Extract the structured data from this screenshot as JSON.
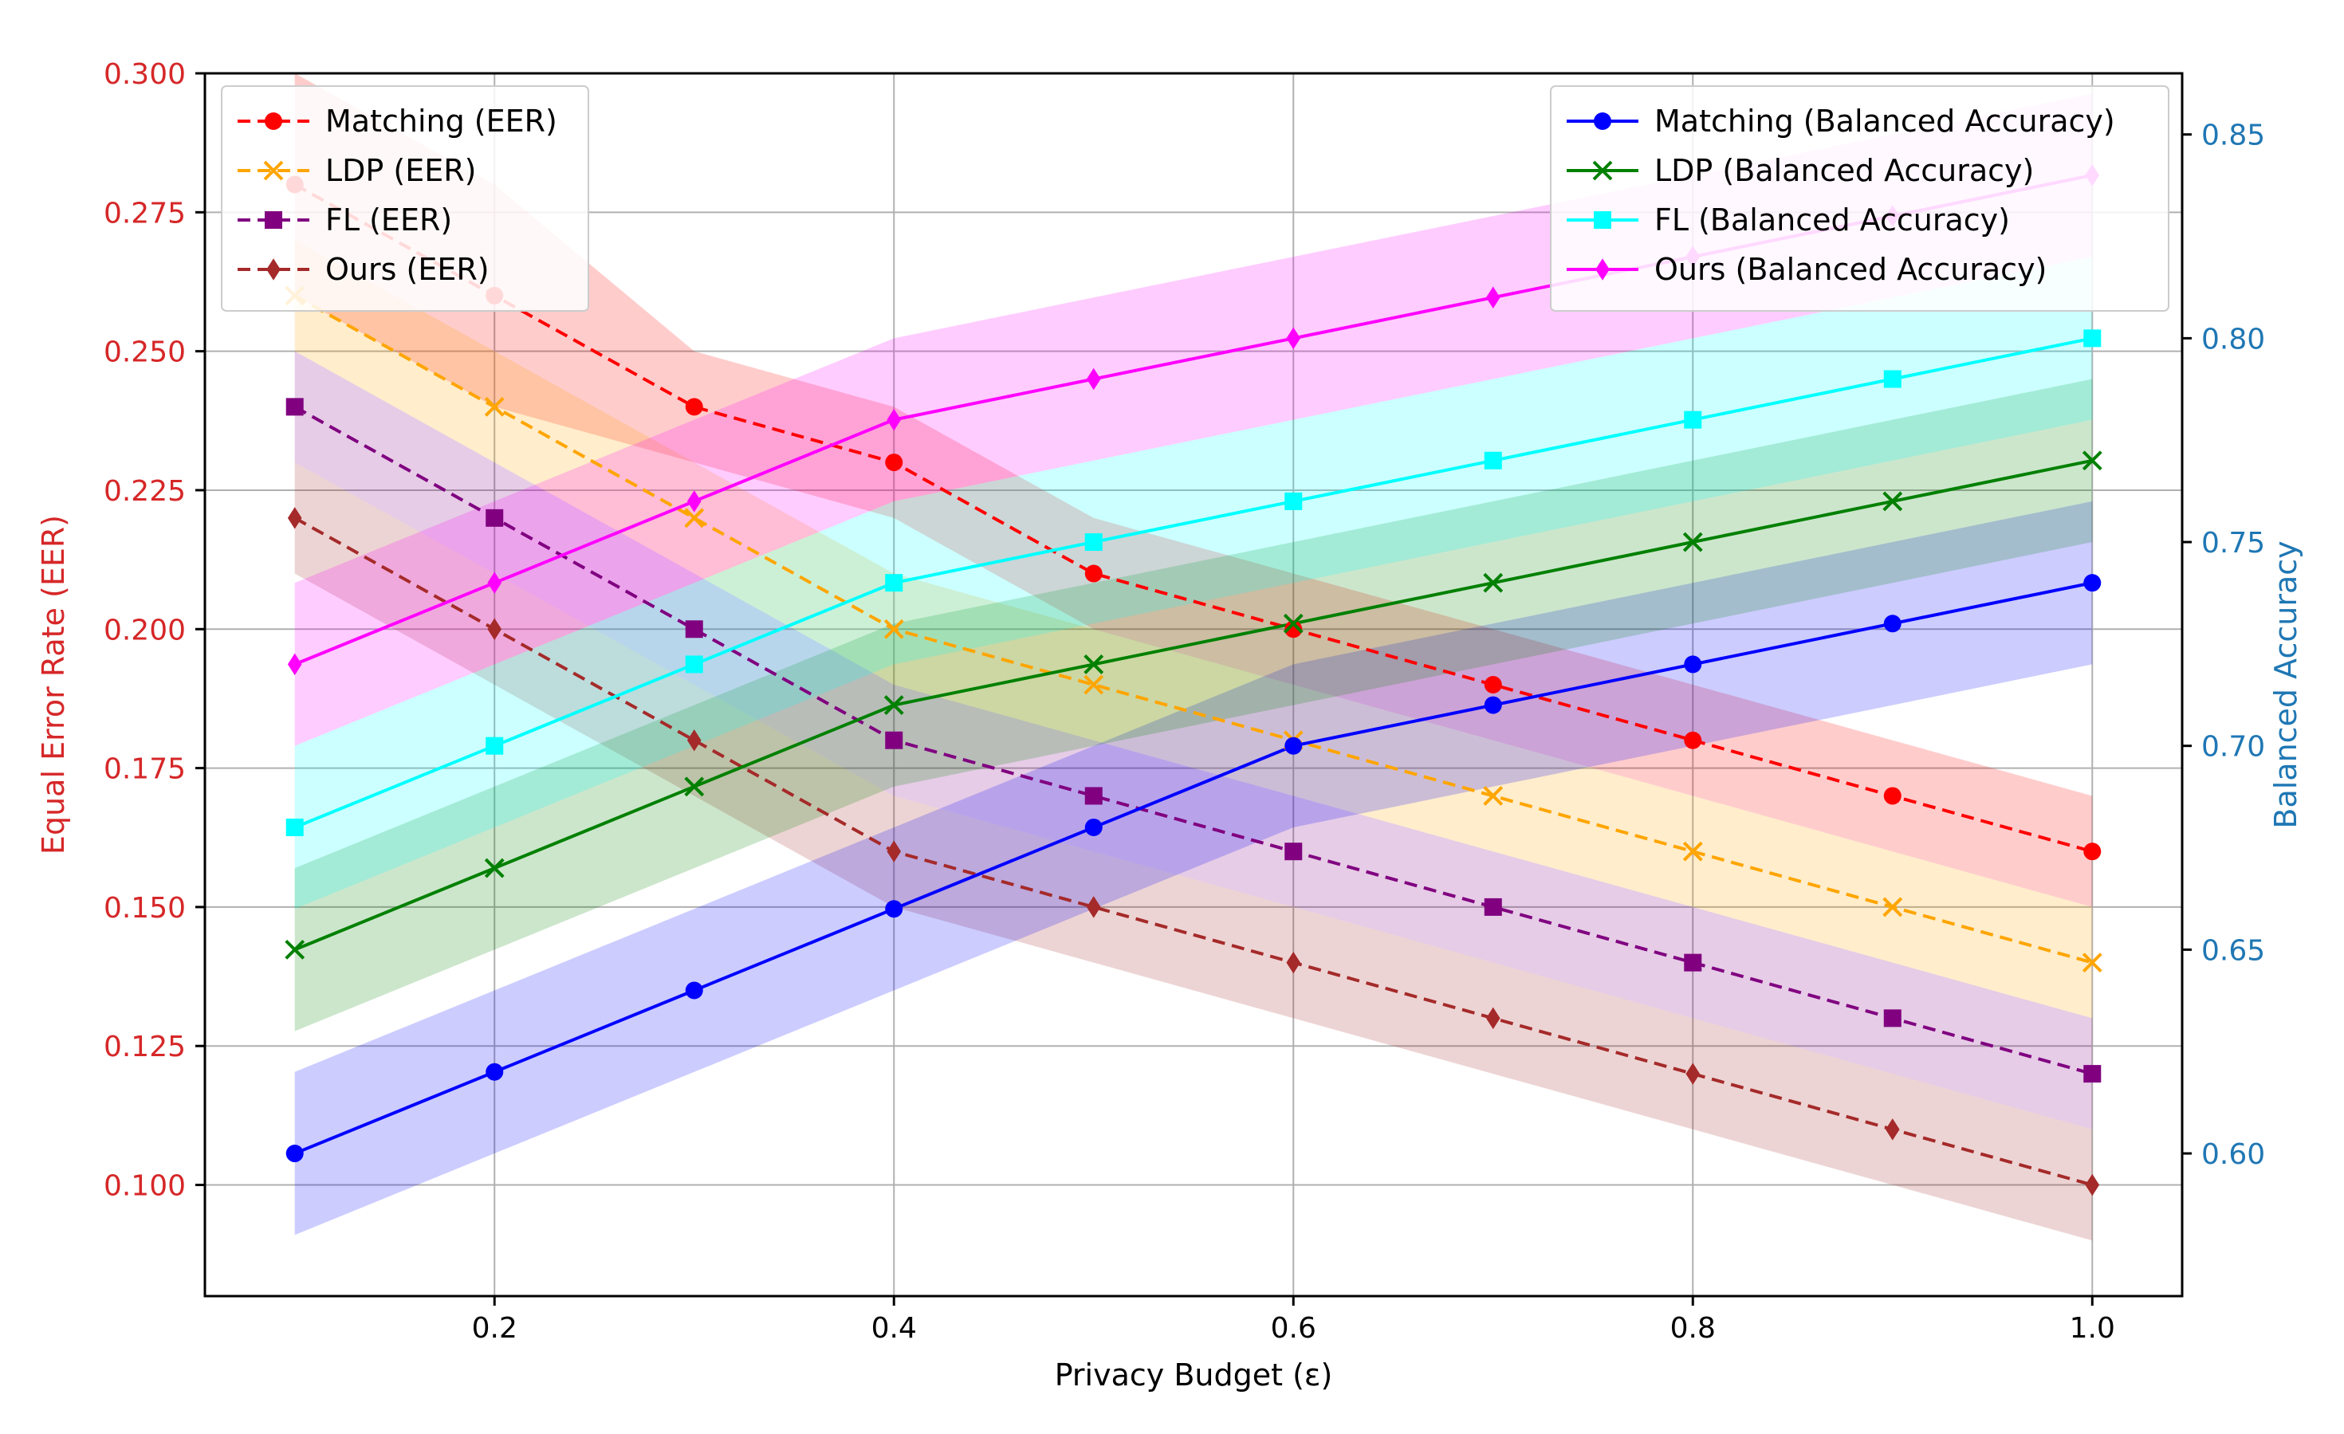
{
  "chart_data": {
    "type": "line",
    "x": [
      0.1,
      0.2,
      0.3,
      0.4,
      0.5,
      0.6,
      0.7,
      0.8,
      0.9,
      1.0
    ],
    "xlabel": "Privacy Budget (ε)",
    "ylabel_left": "Equal Error Rate (EER)",
    "ylabel_right": "Balanced Accuracy",
    "xlim": [
      0.055,
      1.045
    ],
    "ylim_left": [
      0.08,
      0.3
    ],
    "ylim_right": [
      0.565,
      0.865
    ],
    "x_ticks": [
      0.2,
      0.4,
      0.6,
      0.8,
      1.0
    ],
    "x_tick_labels": [
      "0.2",
      "0.4",
      "0.6",
      "0.8",
      "1.0"
    ],
    "y_ticks_left": [
      0.1,
      0.125,
      0.15,
      0.175,
      0.2,
      0.225,
      0.25,
      0.275,
      0.3
    ],
    "y_tick_labels_left": [
      "0.100",
      "0.125",
      "0.150",
      "0.175",
      "0.200",
      "0.225",
      "0.250",
      "0.275",
      "0.300"
    ],
    "y_ticks_right": [
      0.6,
      0.65,
      0.7,
      0.75,
      0.8,
      0.85
    ],
    "y_tick_labels_right": [
      "0.60",
      "0.65",
      "0.70",
      "0.75",
      "0.80",
      "0.85"
    ],
    "grid": true,
    "left_axis_color": "#d62728",
    "right_axis_color": "#1f77b4",
    "legend_left_position": "top-left",
    "legend_right_position": "top-right",
    "series_left": [
      {
        "name": "Matching (EER)",
        "color": "#ff0000",
        "marker": "circle",
        "linestyle": "dashed",
        "values": [
          0.28,
          0.26,
          0.24,
          0.23,
          0.21,
          0.2,
          0.19,
          0.18,
          0.17,
          0.16
        ],
        "band": [
          0.02,
          0.02,
          0.01,
          0.01,
          0.01,
          0.01,
          0.01,
          0.01,
          0.01,
          0.01
        ]
      },
      {
        "name": "LDP (EER)",
        "color": "#ffa500",
        "marker": "x",
        "linestyle": "dashed",
        "values": [
          0.26,
          0.24,
          0.22,
          0.2,
          0.19,
          0.18,
          0.17,
          0.16,
          0.15,
          0.14
        ],
        "band": [
          0.01,
          0.01,
          0.01,
          0.01,
          0.01,
          0.01,
          0.01,
          0.01,
          0.01,
          0.01
        ]
      },
      {
        "name": "FL (EER)",
        "color": "#800080",
        "marker": "square",
        "linestyle": "dashed",
        "values": [
          0.24,
          0.22,
          0.2,
          0.18,
          0.17,
          0.16,
          0.15,
          0.14,
          0.13,
          0.12
        ],
        "band": [
          0.01,
          0.01,
          0.01,
          0.01,
          0.01,
          0.01,
          0.01,
          0.01,
          0.01,
          0.01
        ]
      },
      {
        "name": "Ours (EER)",
        "color": "#a52a2a",
        "marker": "diamond",
        "linestyle": "dashed",
        "values": [
          0.22,
          0.2,
          0.18,
          0.16,
          0.15,
          0.14,
          0.13,
          0.12,
          0.11,
          0.1
        ],
        "band": [
          0.01,
          0.01,
          0.01,
          0.01,
          0.01,
          0.01,
          0.01,
          0.01,
          0.01,
          0.01
        ]
      }
    ],
    "series_right": [
      {
        "name": "Matching (Balanced Accuracy)",
        "color": "#0000ff",
        "marker": "circle",
        "linestyle": "solid",
        "values": [
          0.6,
          0.62,
          0.64,
          0.66,
          0.68,
          0.7,
          0.71,
          0.72,
          0.73,
          0.74
        ],
        "band": [
          0.02,
          0.02,
          0.02,
          0.02,
          0.02,
          0.02,
          0.02,
          0.02,
          0.02,
          0.02
        ]
      },
      {
        "name": "LDP (Balanced Accuracy)",
        "color": "#008000",
        "marker": "x",
        "linestyle": "solid",
        "values": [
          0.65,
          0.67,
          0.69,
          0.71,
          0.72,
          0.73,
          0.74,
          0.75,
          0.76,
          0.77
        ],
        "band": [
          0.02,
          0.02,
          0.02,
          0.02,
          0.02,
          0.02,
          0.02,
          0.02,
          0.02,
          0.02
        ]
      },
      {
        "name": "FL (Balanced Accuracy)",
        "color": "#00ffff",
        "marker": "square",
        "linestyle": "solid",
        "values": [
          0.68,
          0.7,
          0.72,
          0.74,
          0.75,
          0.76,
          0.77,
          0.78,
          0.79,
          0.8
        ],
        "band": [
          0.02,
          0.02,
          0.02,
          0.02,
          0.02,
          0.02,
          0.02,
          0.02,
          0.02,
          0.02
        ]
      },
      {
        "name": "Ours (Balanced Accuracy)",
        "color": "#ff00ff",
        "marker": "diamond",
        "linestyle": "solid",
        "values": [
          0.72,
          0.74,
          0.76,
          0.78,
          0.79,
          0.8,
          0.81,
          0.82,
          0.83,
          0.84
        ],
        "band": [
          0.02,
          0.02,
          0.02,
          0.02,
          0.02,
          0.02,
          0.02,
          0.02,
          0.02,
          0.02
        ]
      }
    ]
  }
}
